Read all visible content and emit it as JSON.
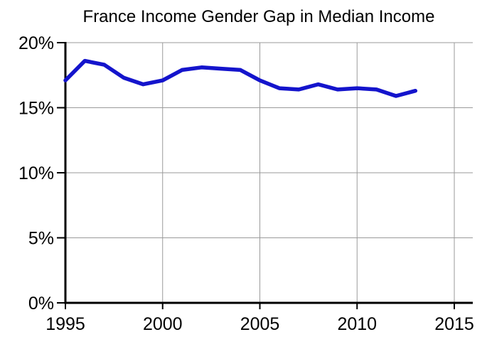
{
  "chart_data": {
    "type": "line",
    "title": "France Income Gender Gap in Median Income",
    "xlabel": "",
    "ylabel": "",
    "xlim": [
      1995,
      2016
    ],
    "ylim": [
      0,
      20
    ],
    "grid": true,
    "legend_position": "none",
    "x_ticks": [
      1995,
      2000,
      2005,
      2010,
      2015
    ],
    "x_tick_labels": [
      "1995",
      "2000",
      "2005",
      "2010",
      "2015"
    ],
    "y_ticks": [
      0,
      5,
      10,
      15,
      20
    ],
    "y_tick_labels": [
      "0%",
      "5%",
      "10%",
      "15%",
      "20%"
    ],
    "x": [
      1995,
      1996,
      1997,
      1998,
      1999,
      2000,
      2001,
      2002,
      2003,
      2004,
      2005,
      2006,
      2007,
      2008,
      2009,
      2010,
      2011,
      2012,
      2013
    ],
    "series": [
      {
        "name": "France income gender gap (median income)",
        "color": "#1414CC",
        "values": [
          17.1,
          18.6,
          18.3,
          17.3,
          16.8,
          17.1,
          17.9,
          18.1,
          18.0,
          17.9,
          17.1,
          16.5,
          16.4,
          16.8,
          16.4,
          16.5,
          16.4,
          15.9,
          16.3
        ]
      }
    ],
    "colors": {
      "background": "#ffffff",
      "axis": "#000000",
      "grid": "#9a9a9a",
      "text": "#000000",
      "line": "#1414CC"
    }
  }
}
